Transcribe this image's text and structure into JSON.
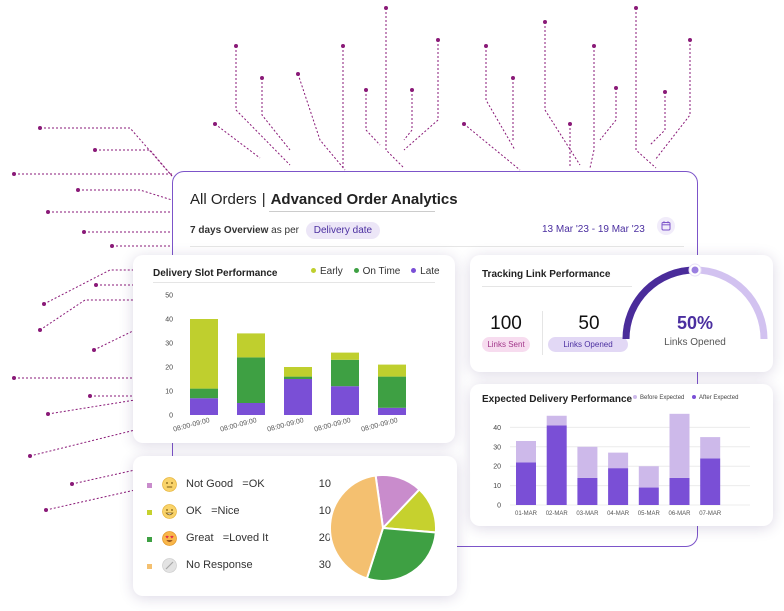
{
  "main": {
    "all_orders": "All Orders",
    "separator": "|",
    "title": "Advanced Order Analytics",
    "overview_bold": "7 days Overview",
    "overview_rest": "as per",
    "filter_pill": "Delivery date",
    "date_range": "13 Mar '23 - 19 Mar '23",
    "calendar_icon": "calendar-icon"
  },
  "slot_performance": {
    "title": "Delivery Slot Performance",
    "legend": [
      {
        "label": "Early",
        "color": "#bfcf2e"
      },
      {
        "label": "On Time",
        "color": "#3ea043"
      },
      {
        "label": "Late",
        "color": "#7a4fd6"
      }
    ]
  },
  "tracking": {
    "title": "Tracking Link Performance",
    "sent_value": "100",
    "sent_label": "Links Sent",
    "opened_value": "50",
    "opened_label": "Links Opened",
    "gauge_percent_text": "50%",
    "gauge_label": "Links Opened",
    "gauge_fraction": 0.5
  },
  "expected": {
    "title": "Expected Delivery Performance",
    "legend_before": "Before Expected",
    "legend_after": "After Expected"
  },
  "feedback": {
    "rows": [
      {
        "label": "Not Good",
        "meaning": "=OK",
        "value": "10",
        "bullet": "#c98ccc",
        "emoji": "neutral-face-icon"
      },
      {
        "label": "OK",
        "meaning": "=Nice",
        "value": "10",
        "bullet": "#c6d12e",
        "emoji": "grinning-face-icon"
      },
      {
        "label": "Great",
        "meaning": "=Loved It",
        "value": "20",
        "bullet": "#3ea043",
        "emoji": "heart-eyes-face-icon"
      },
      {
        "label": "No Response",
        "meaning": "",
        "value": "30",
        "bullet": "#f4c070",
        "emoji": "no-response-icon"
      }
    ]
  },
  "chart_data": [
    {
      "type": "bar",
      "title": "Delivery Slot Performance",
      "stacked": true,
      "categories": [
        "08:00-09:00",
        "08:00-09:00",
        "08:00-09:00",
        "08:00-09:00",
        "08:00-09:00"
      ],
      "series": [
        {
          "name": "Late",
          "color": "#7a4fd6",
          "values": [
            7,
            5,
            15,
            12,
            3
          ]
        },
        {
          "name": "On Time",
          "color": "#3ea043",
          "values": [
            4,
            19,
            1,
            11,
            13
          ]
        },
        {
          "name": "Early",
          "color": "#bfcf2e",
          "values": [
            29,
            10,
            4,
            3,
            5
          ]
        }
      ],
      "y_ticks": [
        "0",
        "10",
        "20",
        "30",
        "40",
        "50"
      ],
      "ylim": [
        0,
        50
      ],
      "legend": "top-right",
      "grid": false
    },
    {
      "type": "bar",
      "title": "Expected Delivery Performance",
      "stacked": true,
      "categories": [
        "01-MAR",
        "02-MAR",
        "03-MAR",
        "04-MAR",
        "05-MAR",
        "06-MAR",
        "07-MAR"
      ],
      "series": [
        {
          "name": "After Expected",
          "color": "#7a4fd6",
          "values": [
            22,
            41,
            14,
            19,
            9,
            14,
            24
          ]
        },
        {
          "name": "Before Expected",
          "color": "#cdb9ea",
          "values": [
            11,
            5,
            16,
            8,
            11,
            33,
            11
          ]
        }
      ],
      "y_ticks": [
        "0",
        "10",
        "20",
        "30",
        "40"
      ],
      "ylim": [
        0,
        50
      ],
      "legend": "top-right",
      "grid": true
    },
    {
      "type": "pie",
      "labels": [
        "Not Good",
        "OK",
        "Great",
        "No Response"
      ],
      "values": [
        10,
        10,
        20,
        30
      ],
      "colors": [
        "#c98ccc",
        "#c6d12e",
        "#3ea043",
        "#f4c070"
      ]
    }
  ]
}
